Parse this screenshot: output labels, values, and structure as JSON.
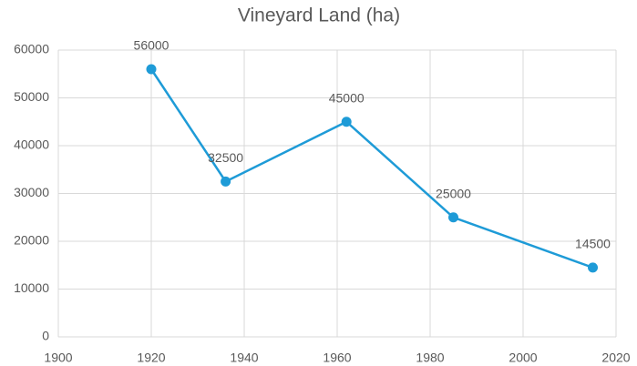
{
  "chart_data": {
    "type": "line",
    "title": "Vineyard Land (ha)",
    "x": [
      1920,
      1936,
      1962,
      1985,
      2015
    ],
    "series": [
      {
        "name": "Vineyard Land",
        "color": "#1e9bd7",
        "values": [
          56000,
          32500,
          45000,
          25000,
          14500
        ]
      }
    ],
    "xlim": [
      1900,
      2020
    ],
    "xticks": [
      1900,
      1920,
      1940,
      1960,
      1980,
      2000,
      2020
    ],
    "ylim": [
      0,
      60000
    ],
    "yticks": [
      0,
      10000,
      20000,
      30000,
      40000,
      50000,
      60000
    ],
    "grid": true
  }
}
